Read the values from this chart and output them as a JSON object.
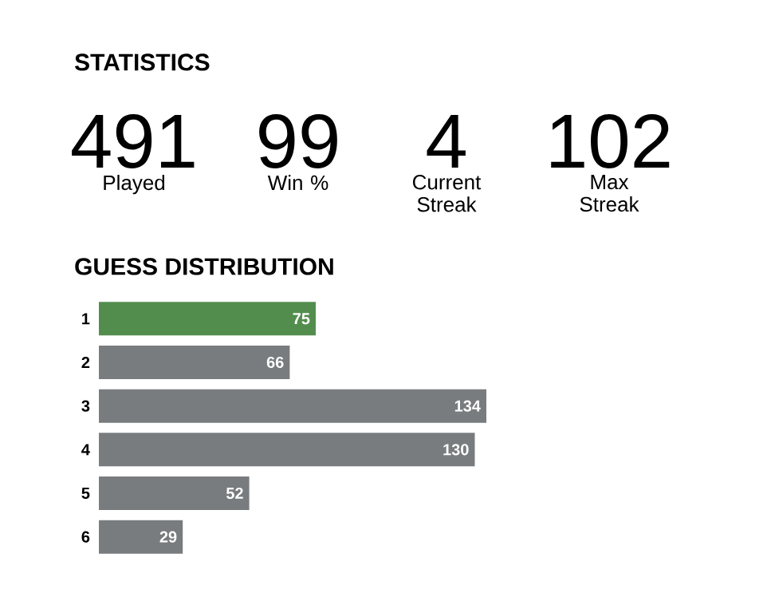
{
  "chart_data": [
    {
      "type": "other",
      "title": "STATISTICS",
      "categories": [
        "Played",
        "Win %",
        "Current Streak",
        "Max Streak"
      ],
      "values": [
        491,
        99,
        4,
        102
      ],
      "data_labels": true
    },
    {
      "type": "bar",
      "orientation": "horizontal",
      "title": "GUESS DISTRIBUTION",
      "categories": [
        "1",
        "2",
        "3",
        "4",
        "5",
        "6"
      ],
      "values": [
        75,
        66,
        134,
        130,
        52,
        29
      ],
      "colors": [
        "#538d4e",
        "#787c7e",
        "#787c7e",
        "#787c7e",
        "#787c7e",
        "#787c7e"
      ],
      "data_labels": true,
      "tick_labels": "y"
    }
  ]
}
